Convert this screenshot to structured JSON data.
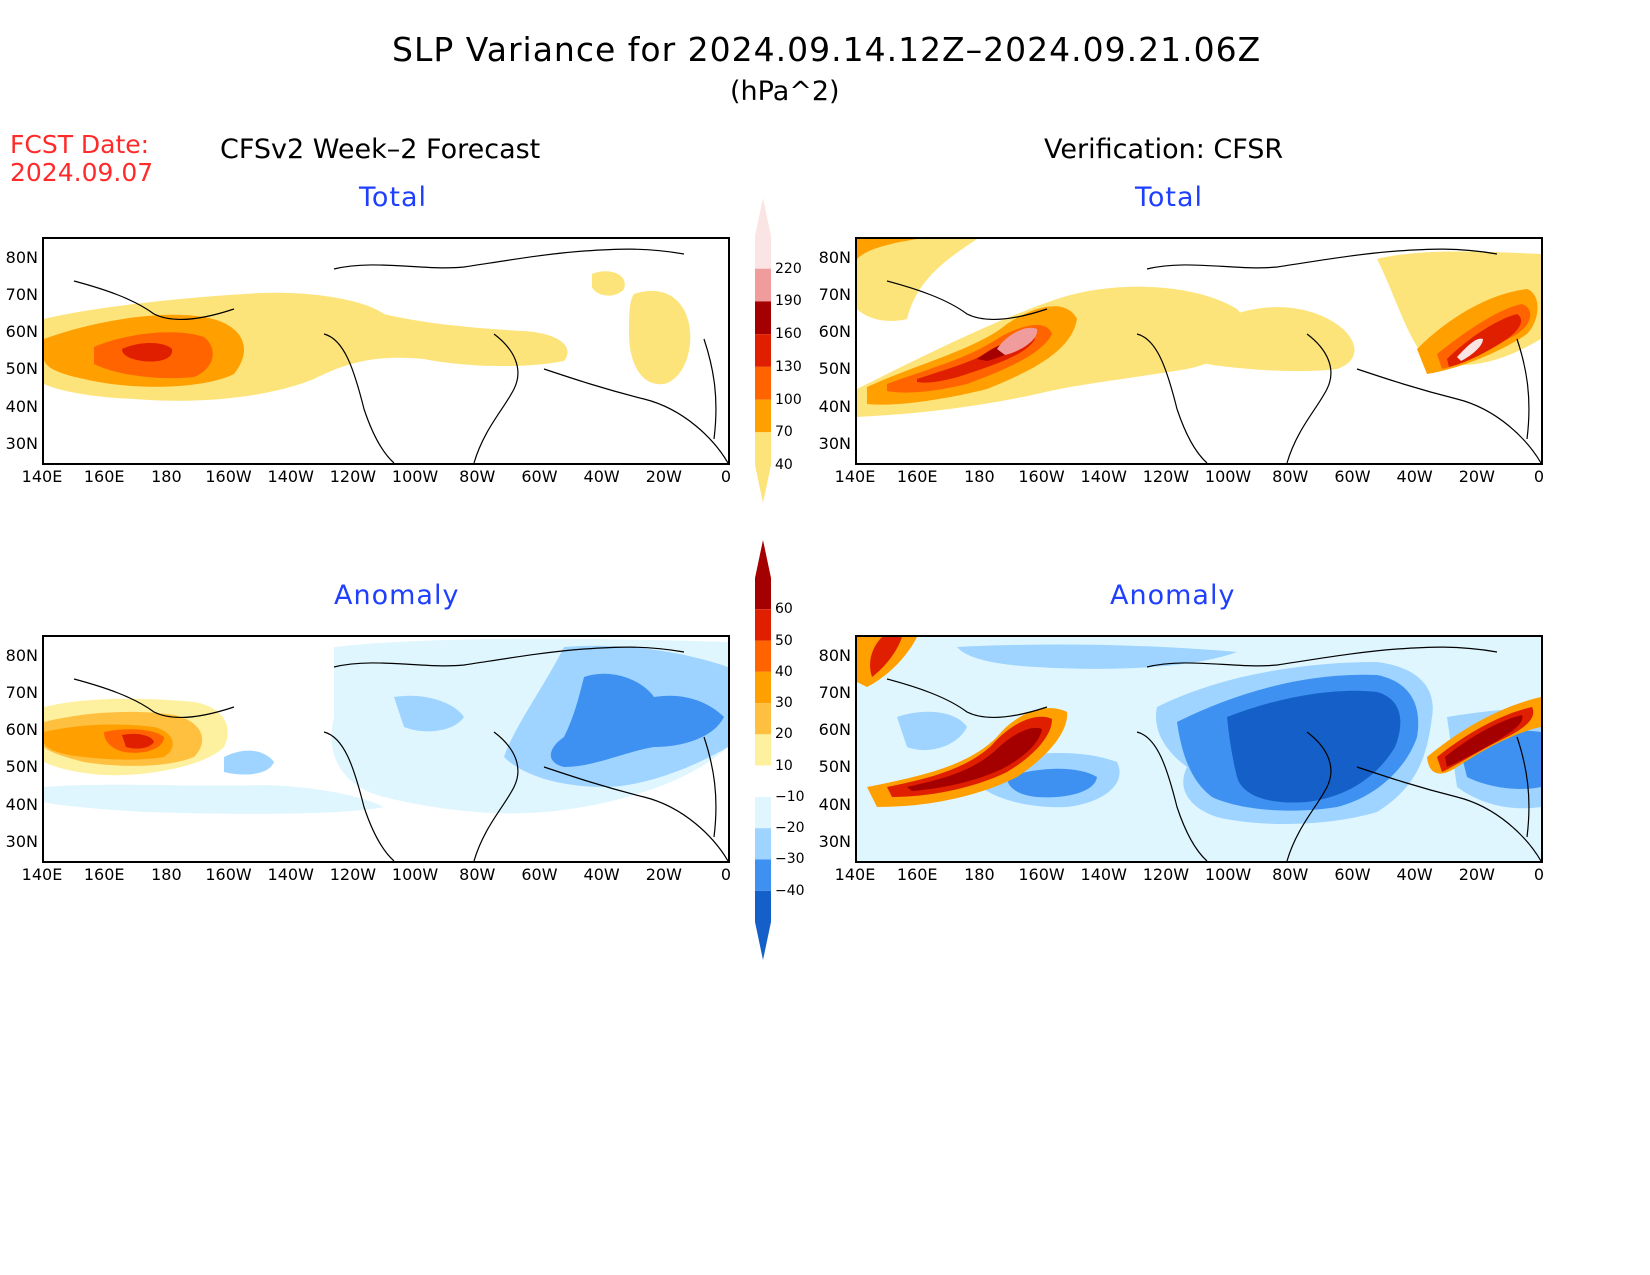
{
  "figure": {
    "title": "SLP Variance for 2024.09.14.12Z–2024.09.21.06Z",
    "units": "(hPa^2)",
    "fcst_label": "FCST Date:",
    "fcst_date": "2024.09.07",
    "left_heading": "CFSv2 Week–2 Forecast",
    "right_heading": "Verification: CFSR"
  },
  "panels": {
    "forecast_total": "Total",
    "forecast_anomaly": "Anomaly",
    "verif_total": "Total",
    "verif_anomaly": "Anomaly"
  },
  "axes": {
    "lat_labels": [
      "80N",
      "70N",
      "60N",
      "50N",
      "40N",
      "30N"
    ],
    "lon_labels": [
      "140E",
      "160E",
      "180",
      "160W",
      "140W",
      "120W",
      "100W",
      "80W",
      "60W",
      "40W",
      "20W",
      "0"
    ]
  },
  "colorbars": {
    "total": {
      "levels": [
        "220",
        "190",
        "160",
        "130",
        "100",
        "70",
        "40"
      ],
      "colors": [
        "#fbe4e4",
        "#f19c9c",
        "#a50000",
        "#e01e00",
        "#ff6400",
        "#ff9f00",
        "#fde47a"
      ]
    },
    "anomaly": {
      "levels": [
        "60",
        "50",
        "40",
        "30",
        "20",
        "10",
        "−10",
        "−20",
        "−30",
        "−40"
      ],
      "colors": [
        "#a50000",
        "#e01e00",
        "#ff6400",
        "#ff9f00",
        "#ffc040",
        "#fdf1a0",
        "#ffffff",
        "#dff6ff",
        "#9ed4ff",
        "#3e91f0",
        "#1560c8"
      ]
    }
  }
}
